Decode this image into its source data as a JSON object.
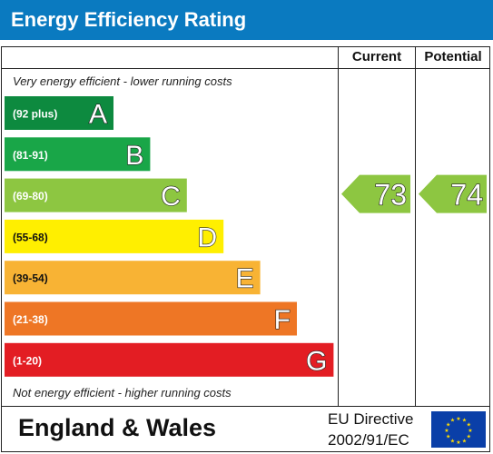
{
  "title": "Energy Efficiency Rating",
  "columns": {
    "current": "Current",
    "potential": "Potential"
  },
  "top_note": "Very energy efficient - lower running costs",
  "bottom_note": "Not energy efficient - higher running costs",
  "footer": {
    "region": "England & Wales",
    "directive_line1": "EU Directive",
    "directive_line2": "2002/91/EC",
    "flag_icon": "eu-flag-icon"
  },
  "chart_data": {
    "type": "bar",
    "bands": [
      {
        "range": "(92 plus)",
        "letter": "A",
        "color": "#0d8a3f"
      },
      {
        "range": "(81-91)",
        "letter": "B",
        "color": "#19a648"
      },
      {
        "range": "(69-80)",
        "letter": "C",
        "color": "#8dc641"
      },
      {
        "range": "(55-68)",
        "letter": "D",
        "color": "#ffef00"
      },
      {
        "range": "(39-54)",
        "letter": "E",
        "color": "#f8b334"
      },
      {
        "range": "(21-38)",
        "letter": "F",
        "color": "#ee7625"
      },
      {
        "range": "(1-20)",
        "letter": "G",
        "color": "#e31d23"
      }
    ],
    "current": {
      "value": 73,
      "band": "C"
    },
    "potential": {
      "value": 74,
      "band": "C"
    },
    "indicator_color": "#8dc641"
  }
}
